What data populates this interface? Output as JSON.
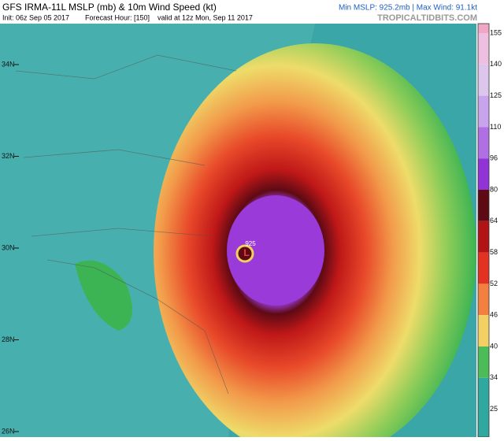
{
  "header": {
    "title": "GFS IRMA-11L MSLP (mb) & 10m Wind Speed (kt)",
    "init": "Init: 06z Sep 05 2017",
    "forecast_hour": "Forecast Hour: [150]",
    "valid": "valid at 12z Mon, Sep 11 2017",
    "stats": "Min MSLP: 925.2mb | Max Wind: 91.1kt",
    "site": "TROPICALTIDBITS.COM"
  },
  "map": {
    "lat_labels": [
      "34N",
      "32N",
      "30N",
      "28N",
      "26N"
    ],
    "low_label": "L",
    "pressure_label": "925"
  },
  "colorbar": {
    "ticks": [
      155,
      140,
      125,
      110,
      96,
      80,
      64,
      58,
      52,
      46,
      40,
      34,
      25
    ],
    "colors": [
      "#f2a6c6",
      "#eebfe0",
      "#dcc6ec",
      "#c8a4ec",
      "#b070e4",
      "#9034d8",
      "#5e0a14",
      "#b01414",
      "#e23222",
      "#f28040",
      "#f2d064",
      "#4cbc58",
      "#2fa8a0"
    ]
  }
}
